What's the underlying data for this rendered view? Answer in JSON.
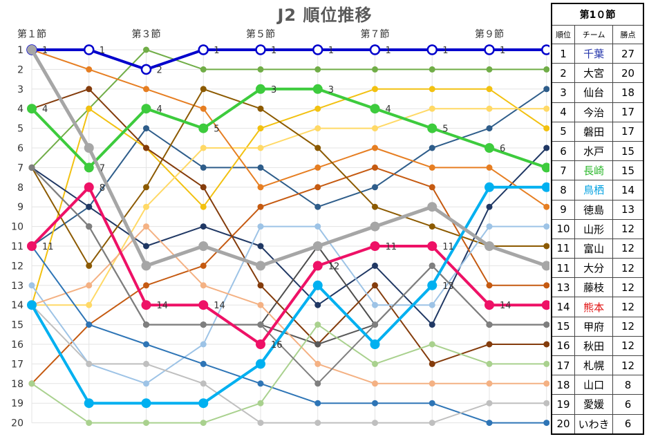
{
  "chart_data": {
    "type": "line",
    "title": "J2 順位推移",
    "x_ticks": [
      "第１節",
      "第３節",
      "第５節",
      "第７節",
      "第９節"
    ],
    "x_tick_positions": [
      1,
      3,
      5,
      7,
      9
    ],
    "x": [
      1,
      2,
      3,
      4,
      5,
      6,
      7,
      8,
      9,
      10
    ],
    "ylim": [
      20,
      1
    ],
    "y_inverted": true,
    "y_ticks": [
      1,
      2,
      3,
      4,
      5,
      6,
      7,
      8,
      9,
      10,
      11,
      12,
      13,
      14,
      15,
      16,
      17,
      18,
      19,
      20
    ],
    "grid": true,
    "highlighted_series": [
      {
        "color": "#0000cc",
        "marker": "open",
        "values": [
          1,
          1,
          2,
          1,
          1,
          1,
          1,
          1,
          1,
          1
        ],
        "labels": [
          "1",
          "1",
          "2",
          "1",
          "1",
          "1",
          "1",
          "1",
          "1",
          ""
        ]
      },
      {
        "color": "#3dcb3d",
        "marker": "filled",
        "values": [
          4,
          7,
          4,
          5,
          3,
          3,
          4,
          5,
          6,
          7
        ],
        "labels": [
          "4",
          "7",
          "4",
          "5",
          "3",
          "3",
          "4",
          "5",
          "6",
          ""
        ]
      },
      {
        "color": "#ee1166",
        "marker": "filled",
        "values": [
          11,
          8,
          14,
          14,
          16,
          12,
          11,
          11,
          14,
          14
        ],
        "labels": [
          "11",
          "8",
          "14",
          "14",
          "16",
          "12",
          "11",
          "11",
          "14",
          ""
        ]
      },
      {
        "color": "#00b0f0",
        "marker": "filled",
        "values": [
          14,
          19,
          19,
          19,
          17,
          13,
          16,
          13,
          8,
          8
        ],
        "labels": [
          "",
          "",
          "",
          "",
          "",
          "",
          "",
          "13",
          "",
          ""
        ]
      },
      {
        "color": "#a6a6a6",
        "marker": "filled",
        "values": [
          1,
          6,
          12,
          11,
          12,
          11,
          10,
          9,
          11,
          12
        ],
        "labels": [
          "",
          "",
          "",
          "",
          "",
          "",
          "",
          "",
          "",
          ""
        ]
      }
    ],
    "other_series": [
      {
        "color": "#70ad47",
        "values": [
          7,
          4,
          1,
          2,
          2,
          2,
          2,
          2,
          2,
          2
        ]
      },
      {
        "color": "#2e5d8a",
        "values": [
          11,
          9,
          5,
          7,
          7,
          9,
          8,
          6,
          5,
          3
        ]
      },
      {
        "color": "#f2c111",
        "values": [
          14,
          4,
          6,
          9,
          5,
          4,
          3,
          3,
          3,
          5
        ]
      },
      {
        "color": "#ffd966",
        "values": [
          14,
          14,
          9,
          6,
          6,
          5,
          5,
          4,
          4,
          4
        ]
      },
      {
        "color": "#203864",
        "values": [
          7,
          9,
          11,
          10,
          11,
          14,
          12,
          15,
          9,
          6
        ]
      },
      {
        "color": "#4d4d4d",
        "values": [
          7,
          10,
          15,
          15,
          15,
          11,
          15,
          12,
          15,
          15
        ]
      },
      {
        "color": "#e67e22",
        "values": [
          1,
          2,
          3,
          4,
          8,
          7,
          6,
          7,
          7,
          9
        ]
      },
      {
        "color": "#c55a11",
        "values": [
          18,
          15,
          13,
          12,
          9,
          8,
          7,
          8,
          13,
          13
        ]
      },
      {
        "color": "#8c5a00",
        "values": [
          7,
          12,
          8,
          3,
          4,
          6,
          9,
          10,
          11,
          11
        ]
      },
      {
        "color": "#843c0c",
        "values": [
          4,
          3,
          6,
          8,
          13,
          16,
          13,
          17,
          16,
          16
        ]
      },
      {
        "color": "#595959",
        "values": [
          7,
          10,
          15,
          15,
          15,
          16,
          15,
          12,
          15,
          15
        ]
      },
      {
        "color": "#9dc3e6",
        "values": [
          13,
          17,
          18,
          16,
          10,
          10,
          14,
          14,
          10,
          10
        ]
      },
      {
        "color": "#f4b183",
        "values": [
          14,
          13,
          10,
          13,
          14,
          17,
          18,
          18,
          18,
          18
        ]
      },
      {
        "color": "#2e75b6",
        "values": [
          11,
          15,
          16,
          17,
          18,
          19,
          19,
          19,
          20,
          20
        ]
      },
      {
        "color": "#a9d18e",
        "values": [
          18,
          20,
          20,
          20,
          19,
          15,
          17,
          16,
          17,
          17
        ]
      },
      {
        "color": "#bfbfbf",
        "values": [
          14,
          17,
          17,
          18,
          20,
          20,
          20,
          20,
          19,
          19
        ]
      },
      {
        "color": "#7f7f7f",
        "values": [
          7,
          10,
          15,
          15,
          15,
          18,
          15,
          12,
          15,
          15
        ]
      }
    ]
  },
  "standings": {
    "title": "第1０節",
    "headers": [
      "順位",
      "チーム",
      "勝点"
    ],
    "rows": [
      {
        "rank": "1",
        "team": "千葉",
        "points": "27",
        "color": "#2233aa"
      },
      {
        "rank": "2",
        "team": "大宮",
        "points": "20",
        "color": "#000000"
      },
      {
        "rank": "3",
        "team": "仙台",
        "points": "18",
        "color": "#000000"
      },
      {
        "rank": "4",
        "team": "今治",
        "points": "17",
        "color": "#000000"
      },
      {
        "rank": "5",
        "team": "磐田",
        "points": "17",
        "color": "#000000"
      },
      {
        "rank": "6",
        "team": "水戸",
        "points": "15",
        "color": "#000000"
      },
      {
        "rank": "7",
        "team": "長崎",
        "points": "15",
        "color": "#2db82d"
      },
      {
        "rank": "8",
        "team": "鳥栖",
        "points": "14",
        "color": "#00a0e0"
      },
      {
        "rank": "9",
        "team": "徳島",
        "points": "13",
        "color": "#000000"
      },
      {
        "rank": "10",
        "team": "山形",
        "points": "12",
        "color": "#000000"
      },
      {
        "rank": "11",
        "team": "富山",
        "points": "12",
        "color": "#000000"
      },
      {
        "rank": "11",
        "team": "大分",
        "points": "12",
        "color": "#000000"
      },
      {
        "rank": "13",
        "team": "藤枝",
        "points": "12",
        "color": "#000000"
      },
      {
        "rank": "14",
        "team": "熊本",
        "points": "12",
        "color": "#e01010"
      },
      {
        "rank": "15",
        "team": "甲府",
        "points": "12",
        "color": "#000000"
      },
      {
        "rank": "16",
        "team": "秋田",
        "points": "12",
        "color": "#000000"
      },
      {
        "rank": "17",
        "team": "札幌",
        "points": "12",
        "color": "#000000"
      },
      {
        "rank": "18",
        "team": "山口",
        "points": "8",
        "color": "#000000"
      },
      {
        "rank": "19",
        "team": "愛媛",
        "points": "6",
        "color": "#000000"
      },
      {
        "rank": "20",
        "team": "いわき",
        "points": "6",
        "color": "#000000"
      }
    ]
  }
}
